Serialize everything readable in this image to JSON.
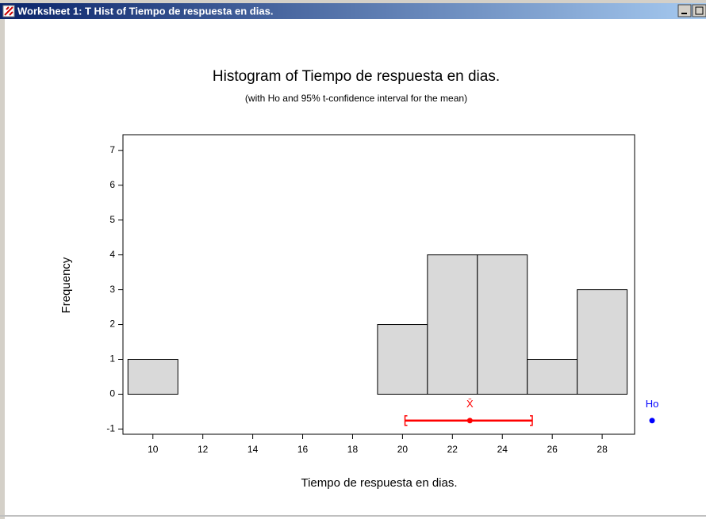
{
  "window": {
    "title": "Worksheet 1: T Hist of Tiempo de respuesta en dias."
  },
  "chart_data": {
    "type": "histogram",
    "title": "Histogram of Tiempo de respuesta en dias.",
    "subtitle": "(with Ho and 95% t-confidence interval for the mean)",
    "x_label": "Tiempo de respuesta en dias.",
    "y_label": "Frequency",
    "bins": [
      9,
      11,
      13,
      15,
      17,
      19,
      21,
      23,
      25,
      27,
      29
    ],
    "values": [
      1,
      0,
      0,
      0,
      0,
      2,
      4,
      4,
      1,
      3
    ],
    "color": "#d9d9d9",
    "xlim": [
      8.8,
      29.3
    ],
    "xticks": [
      10,
      12,
      14,
      16,
      18,
      20,
      22,
      24,
      26,
      28
    ],
    "ylim": [
      -1.15,
      7.45
    ],
    "yticks": [
      -1,
      0,
      1,
      2,
      3,
      4,
      5,
      6,
      7
    ],
    "confidence_interval": {
      "lower": 20.1,
      "mean": 22.7,
      "upper": 25.2,
      "color": "#ff0000"
    },
    "mean_label": "X̄",
    "ho": 30,
    "ho_label": "Ho",
    "ho_color": "#0000ff"
  }
}
